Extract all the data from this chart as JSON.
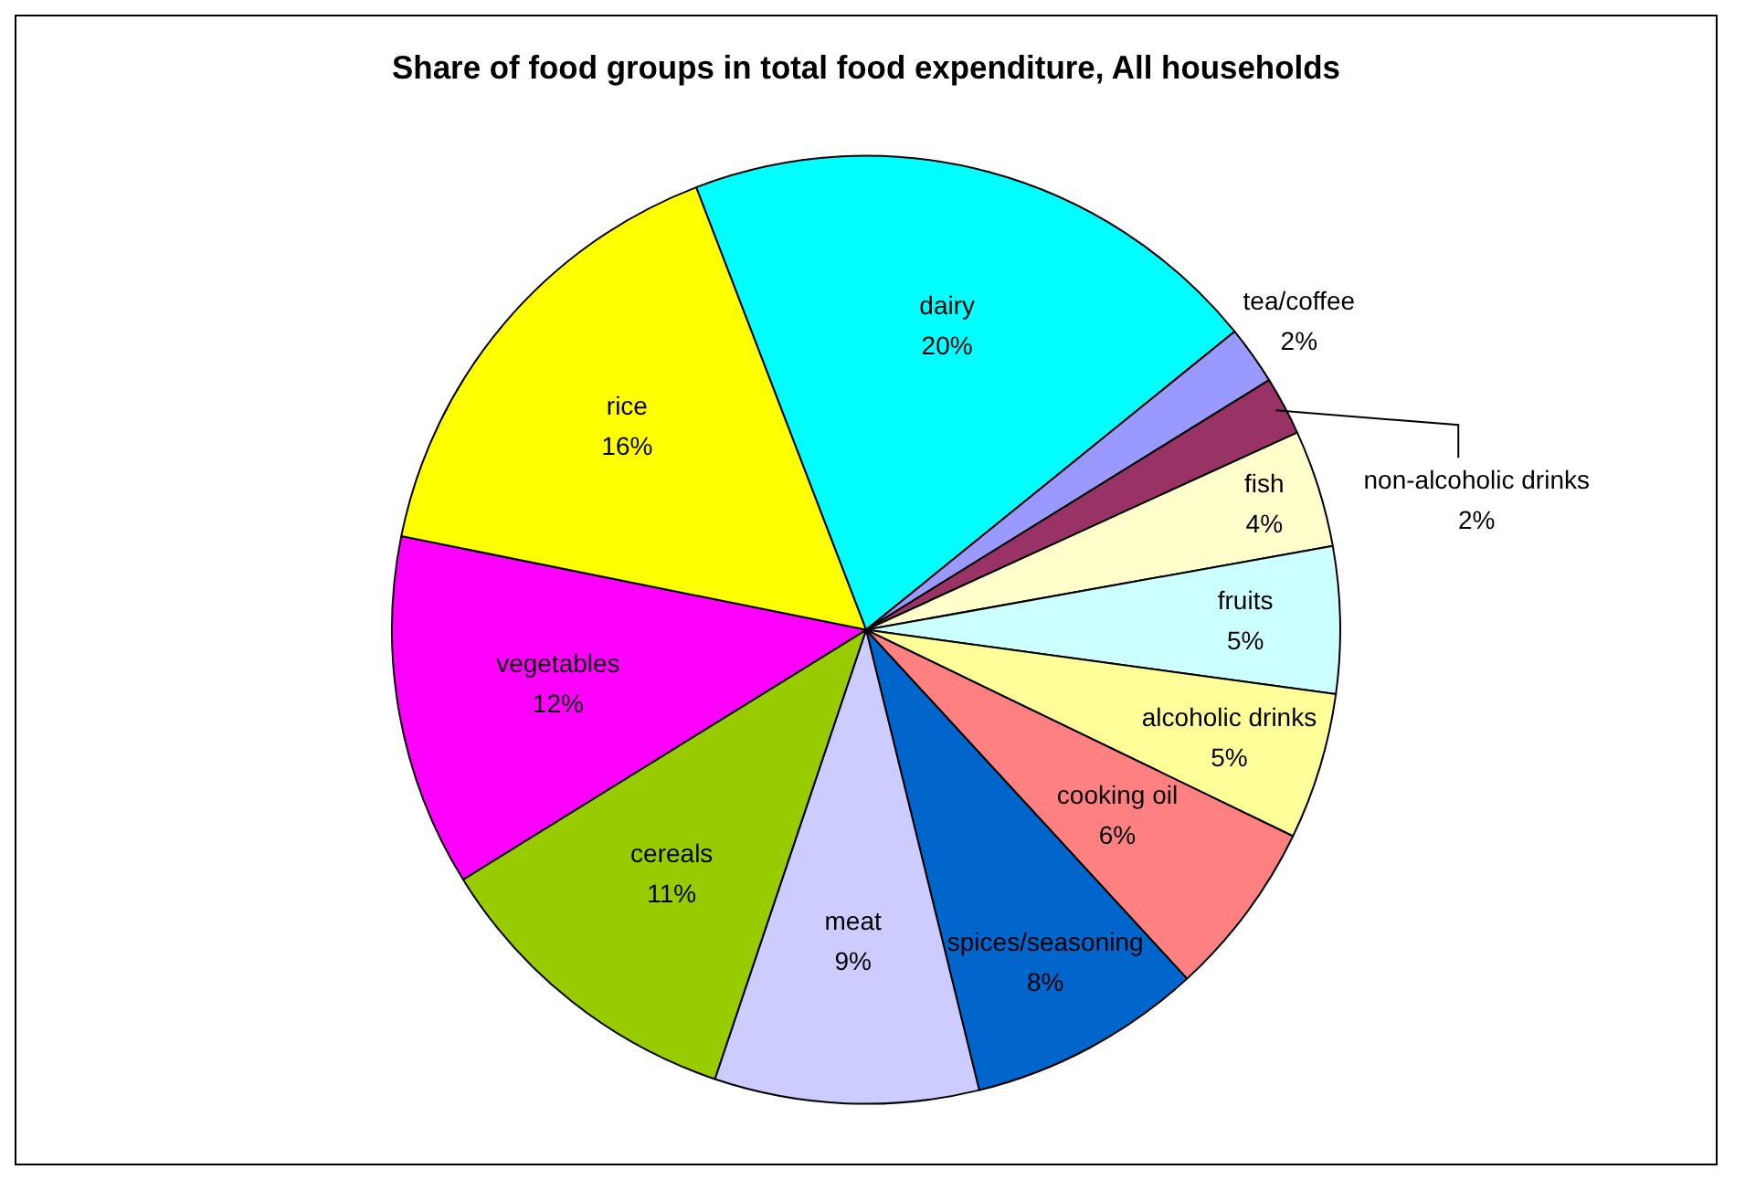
{
  "chart_data": {
    "type": "pie",
    "title": "Share of food groups in total food expenditure, All households",
    "categories": [
      "dairy",
      "tea/coffee",
      "non-alcoholic drinks",
      "fish",
      "fruits",
      "alcoholic drinks",
      "cooking oil",
      "spices/seasoning",
      "meat",
      "cereals",
      "vegetables",
      "rice"
    ],
    "values": [
      20,
      2,
      2,
      4,
      5,
      5,
      6,
      8,
      9,
      11,
      12,
      16
    ],
    "value_labels": [
      "20%",
      "2%",
      "2%",
      "4%",
      "5%",
      "5%",
      "6%",
      "8%",
      "9%",
      "11%",
      "12%",
      "16%"
    ],
    "colors": [
      "#00ffff",
      "#9999ff",
      "#993366",
      "#ffffcc",
      "#ccffff",
      "#ffff99",
      "#ff8080",
      "#0066cc",
      "#ccccff",
      "#99cc00",
      "#ff00ff",
      "#ffff00"
    ],
    "legend": false
  }
}
